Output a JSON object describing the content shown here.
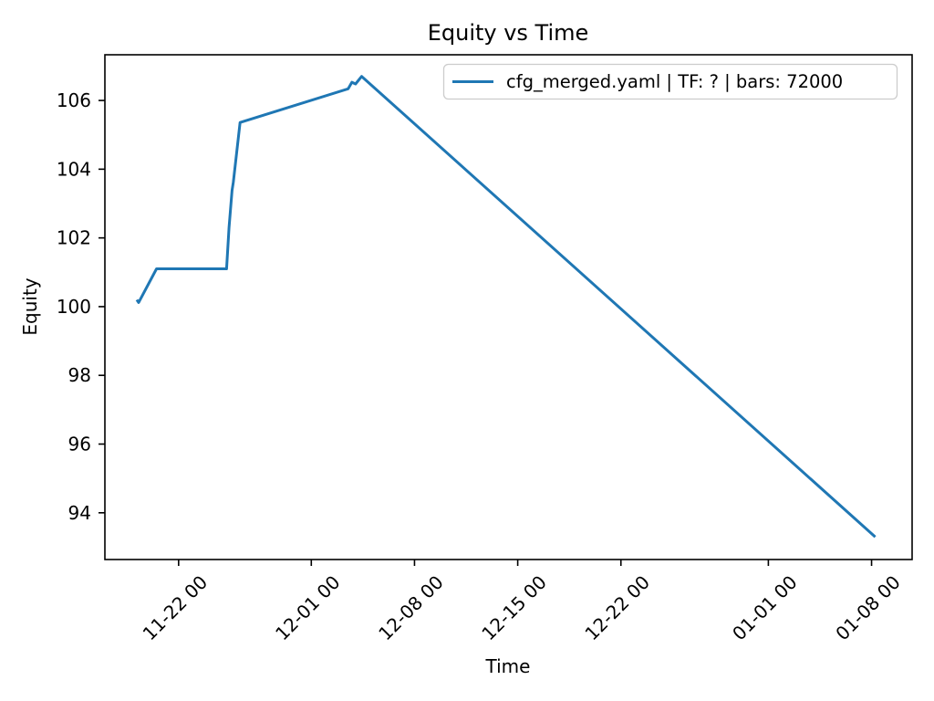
{
  "chart_data": {
    "type": "line",
    "title": "Equity vs Time",
    "xlabel": "Time",
    "ylabel": "Equity",
    "grid": false,
    "background_color": "#ffffff",
    "axis_color": "#000000",
    "legend_position": "upper right",
    "x_tick_rotation_deg": 45,
    "xlim": [
      "11-17 00",
      "01-10 18"
    ],
    "ylim": [
      92.64,
      107.33
    ],
    "yticks": [
      94,
      96,
      98,
      100,
      102,
      104,
      106
    ],
    "xticks": [
      "11-22 00",
      "12-01 00",
      "12-08 00",
      "12-15 00",
      "12-22 00",
      "01-01 00",
      "01-08 00"
    ],
    "series": [
      {
        "name": "cfg_merged.yaml | TF: ? | bars: 72000",
        "color": "#1f77b4",
        "points": [
          [
            "11-19 04",
            100.2
          ],
          [
            "11-19 07",
            100.12
          ],
          [
            "11-20 12",
            101.1
          ],
          [
            "11-25 06",
            101.1
          ],
          [
            "11-25 10",
            102.3
          ],
          [
            "11-25 15",
            103.38
          ],
          [
            "11-25 17",
            103.62
          ],
          [
            "11-26 04",
            105.36
          ],
          [
            "12-03 12",
            106.34
          ],
          [
            "12-03 18",
            106.53
          ],
          [
            "12-04 00",
            106.48
          ],
          [
            "12-04 10",
            106.7
          ],
          [
            "01-08 06",
            93.3
          ]
        ]
      }
    ]
  }
}
